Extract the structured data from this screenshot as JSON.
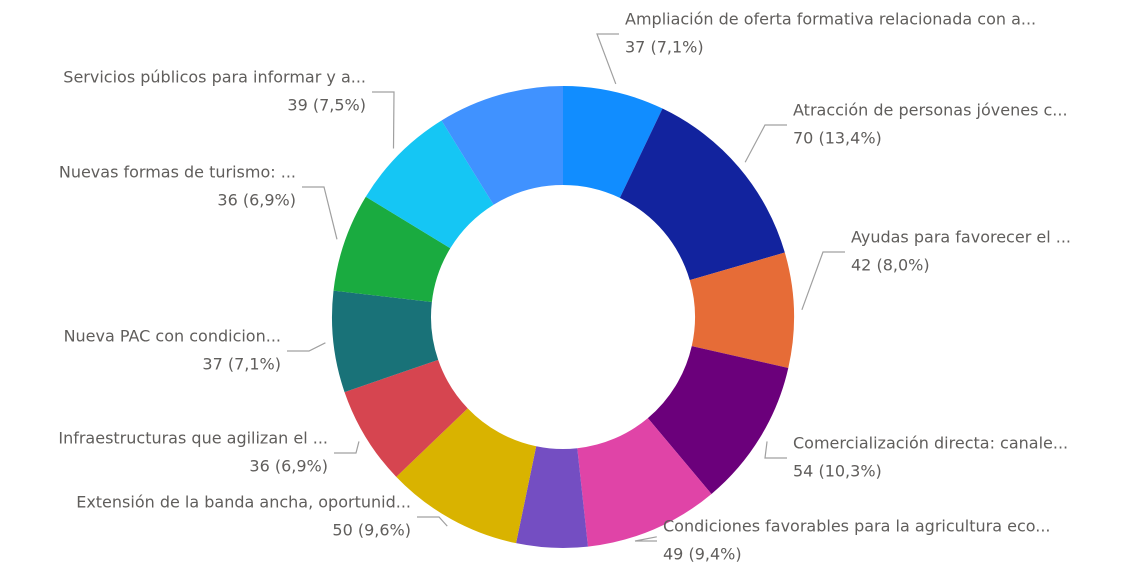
{
  "chart_data": {
    "type": "donut",
    "categories": [
      "Ampliación de oferta formativa relacionada con a...",
      "Atracción de personas jóvenes c...",
      "Ayudas para favorecer el ...",
      "Comercialización directa: canale...",
      "Condiciones favorables para la agricultura eco...",
      null,
      "Extensión de la banda ancha, oportunid...",
      "Infraestructuras que agilizan el ...",
      "Nueva PAC con condicion...",
      "Nuevas formas de turismo: ...",
      "Servicios públicos para informar y a...",
      null
    ],
    "values": [
      37,
      70,
      42,
      54,
      49,
      26,
      50,
      36,
      37,
      36,
      39,
      46
    ],
    "value_labels": [
      "37 (7,1%)",
      "70 (13,4%)",
      "42 (8,0%)",
      "54 (10,3%)",
      "49 (9,4%)",
      null,
      "50 (9,6%)",
      "36 (6,9%)",
      "37 (7,1%)",
      "36 (6,9%)",
      "39 (7,5%)",
      null
    ],
    "colors": [
      "#118DFF",
      "#12239E",
      "#E66C37",
      "#6B007B",
      "#E044A7",
      "#744EC2",
      "#D9B300",
      "#D64550",
      "#197278",
      "#1AAB40",
      "#15C6F4",
      "#4092FF"
    ]
  }
}
